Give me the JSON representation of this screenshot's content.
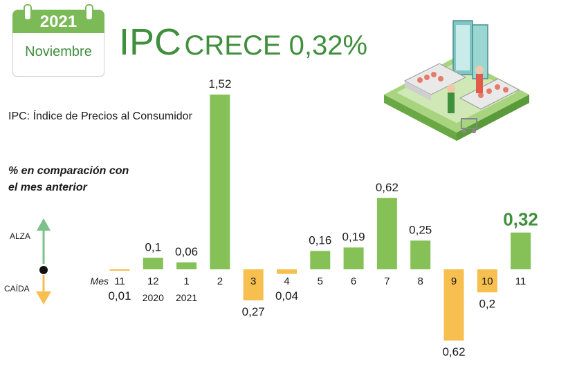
{
  "calendar": {
    "year": "2021",
    "month": "Noviembre"
  },
  "title": {
    "main": "IPC",
    "rest": "CRECE 0,32%"
  },
  "subtitle": "IPC: Índice de Precios al Consumidor",
  "note_line1": "% en comparación con",
  "note_line2": "el mes anterior",
  "legend": {
    "up": "ALZA",
    "down": "CAÍDA"
  },
  "colors": {
    "positive": "#85c156",
    "negative": "#f6bf4f",
    "accent": "#3f8f3c"
  },
  "chart_data": {
    "type": "bar",
    "xlabel": "Mes",
    "categories": [
      "11",
      "12",
      "1",
      "2",
      "3",
      "4",
      "5",
      "6",
      "7",
      "8",
      "9",
      "10",
      "11"
    ],
    "year_labels": [
      "",
      "2020",
      "2021",
      "",
      "",
      "",
      "",
      "",
      "",
      "",
      "",
      "",
      ""
    ],
    "values": [
      -0.01,
      0.1,
      0.06,
      1.52,
      -0.27,
      -0.04,
      0.16,
      0.19,
      0.62,
      0.25,
      -0.62,
      -0.2,
      0.32
    ],
    "value_labels": [
      "0,01",
      "0,1",
      "0,06",
      "1,52",
      "0,27",
      "0,04",
      "0,16",
      "0,19",
      "0,62",
      "0,25",
      "0,62",
      "0,2",
      "0,32"
    ],
    "ylim": [
      -0.62,
      1.52
    ]
  }
}
